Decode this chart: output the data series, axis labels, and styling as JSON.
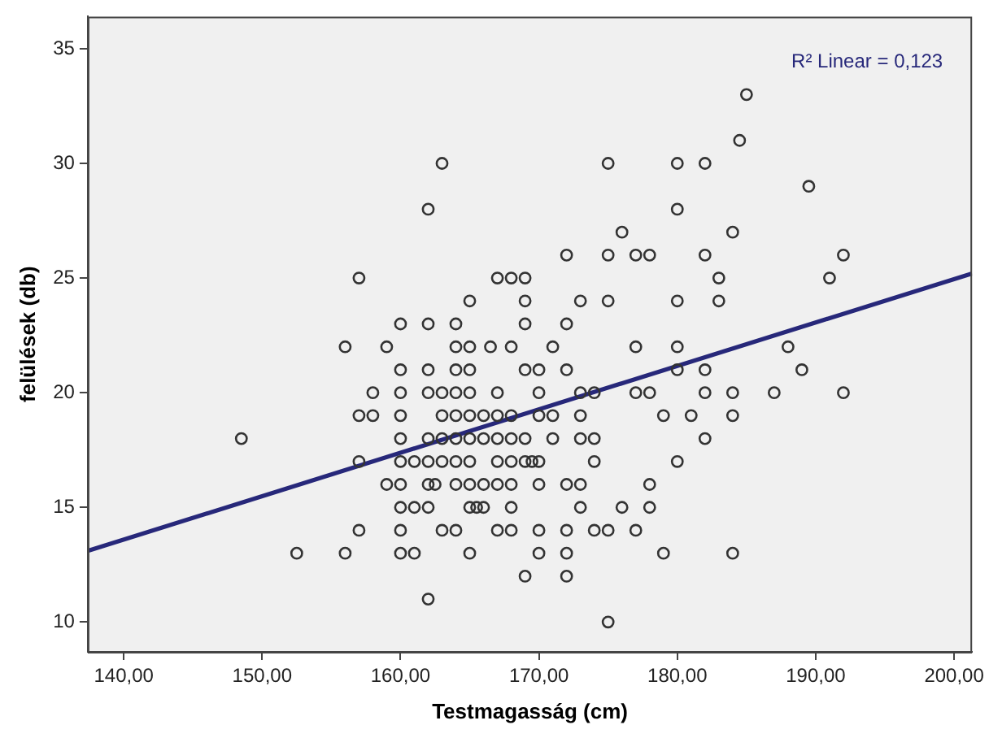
{
  "chart_data": {
    "type": "scatter",
    "xlabel": "Testmagasság (cm)",
    "ylabel": "felülések (db)",
    "annotations": [
      "R² Linear = 0,123"
    ],
    "xlim": [
      137.4,
      201.3
    ],
    "ylim": [
      8.7,
      36.4
    ],
    "xticks": [
      {
        "value": 140,
        "label": "140,00"
      },
      {
        "value": 150,
        "label": "150,00"
      },
      {
        "value": 160,
        "label": "160,00"
      },
      {
        "value": 170,
        "label": "170,00"
      },
      {
        "value": 180,
        "label": "180,00"
      },
      {
        "value": 190,
        "label": "190,00"
      },
      {
        "value": 200,
        "label": "200,00"
      }
    ],
    "yticks": [
      10,
      15,
      20,
      25,
      30,
      35
    ],
    "grid": false,
    "legend": false,
    "marker": "circle",
    "series": [
      {
        "color": "#333333",
        "x": [
          185,
          184.5,
          163,
          175,
          180,
          182,
          189.5,
          162,
          180,
          176,
          184,
          172,
          175,
          177,
          178,
          182,
          192,
          157,
          167,
          168,
          169,
          183,
          191,
          165,
          169,
          173,
          175,
          180,
          183,
          160,
          162,
          164,
          169,
          172,
          156,
          159,
          164,
          165,
          166.5,
          168,
          171,
          177,
          180,
          188,
          160,
          162,
          164,
          165,
          169,
          170,
          172,
          180,
          182,
          189,
          158,
          160,
          162,
          163,
          164,
          165,
          167,
          170,
          173,
          174,
          177,
          178,
          182,
          184,
          187,
          192,
          157,
          158,
          160,
          163,
          164,
          165,
          166,
          167,
          168,
          170,
          171,
          173,
          179,
          181,
          184,
          148.5,
          160,
          162,
          163,
          164,
          165,
          166,
          167,
          168,
          169,
          171,
          173,
          174,
          182,
          157,
          160,
          161,
          162,
          163,
          164,
          165,
          167,
          168,
          169,
          169.5,
          170,
          174,
          180,
          159,
          160,
          162,
          162.5,
          164,
          165,
          166,
          167,
          168,
          170,
          172,
          173,
          178,
          160,
          161,
          162,
          165,
          165.5,
          166,
          168,
          173,
          176,
          178,
          157,
          160,
          163,
          164,
          167,
          168,
          170,
          172,
          174,
          175,
          177,
          152.5,
          156,
          160,
          161,
          165,
          170,
          172,
          179,
          184,
          169,
          172,
          162,
          175
        ],
        "values": [
          33,
          31,
          30,
          30,
          30,
          30,
          29,
          28,
          28,
          27,
          27,
          26,
          26,
          26,
          26,
          26,
          26,
          25,
          25,
          25,
          25,
          25,
          25,
          24,
          24,
          24,
          24,
          24,
          24,
          23,
          23,
          23,
          23,
          23,
          22,
          22,
          22,
          22,
          22,
          22,
          22,
          22,
          22,
          22,
          21,
          21,
          21,
          21,
          21,
          21,
          21,
          21,
          21,
          21,
          20,
          20,
          20,
          20,
          20,
          20,
          20,
          20,
          20,
          20,
          20,
          20,
          20,
          20,
          20,
          20,
          19,
          19,
          19,
          19,
          19,
          19,
          19,
          19,
          19,
          19,
          19,
          19,
          19,
          19,
          19,
          18,
          18,
          18,
          18,
          18,
          18,
          18,
          18,
          18,
          18,
          18,
          18,
          18,
          18,
          17,
          17,
          17,
          17,
          17,
          17,
          17,
          17,
          17,
          17,
          17,
          17,
          17,
          17,
          16,
          16,
          16,
          16,
          16,
          16,
          16,
          16,
          16,
          16,
          16,
          16,
          16,
          15,
          15,
          15,
          15,
          15,
          15,
          15,
          15,
          15,
          15,
          14,
          14,
          14,
          14,
          14,
          14,
          14,
          14,
          14,
          14,
          14,
          13,
          13,
          13,
          13,
          13,
          13,
          13,
          13,
          13,
          12,
          12,
          11,
          10
        ]
      },
      {
        "type": "line",
        "marker": "none",
        "color": "#27287a",
        "x": [
          137.4,
          201.3
        ],
        "values": [
          13.1,
          25.2
        ]
      }
    ]
  }
}
